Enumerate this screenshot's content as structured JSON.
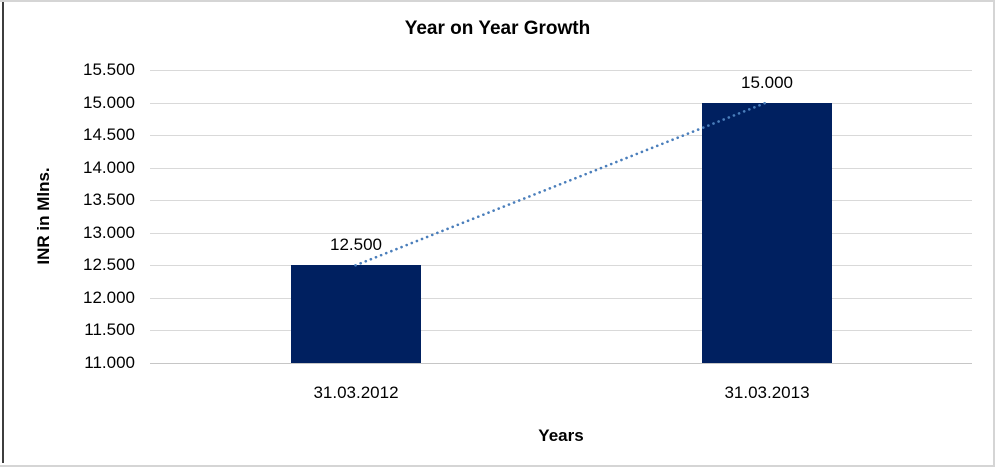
{
  "chart_data": {
    "type": "bar",
    "title": "Year on Year Growth",
    "categories": [
      "31.03.2012",
      "31.03.2013"
    ],
    "values": [
      12500,
      15000
    ],
    "value_labels": [
      "12.500",
      "15.000"
    ],
    "xlabel": "Years",
    "ylabel": "INR in Mlns.",
    "ylim": [
      11000,
      15500
    ],
    "ytick_step": 500,
    "ytick_labels": [
      "15.500",
      "15.000",
      "14.500",
      "14.000",
      "13.500",
      "13.000",
      "12.500",
      "12.000",
      "11.500",
      "11.000"
    ],
    "grid": true,
    "legend": "none",
    "colors": {
      "bar": "#002060",
      "trendline": "#4a7ebb",
      "gridline": "#d9d9d9",
      "axis_line": "#c6c6c6",
      "text": "#000000"
    },
    "trendline": {
      "style": "dotted",
      "from_value": 12500,
      "to_value": 15000
    }
  }
}
